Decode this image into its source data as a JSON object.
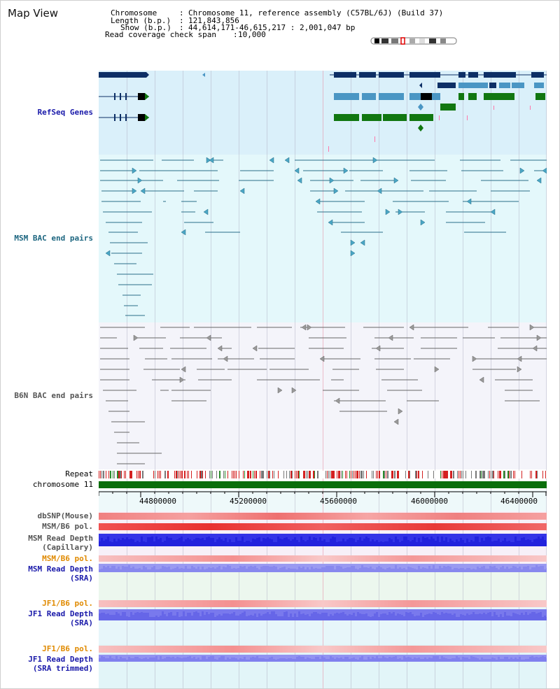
{
  "header": {
    "title": "Map View",
    "chromosome_label": "Chromosome",
    "chromosome_value": "Chromosome 11, reference assembly (C57BL/6J) (Build 37)",
    "length_label": "Length (b.p.)",
    "length_value": "121,843,856",
    "show_label": "Show (b.p.)",
    "show_value": "44,614,171-46,615,217 : 2,001,047 bp",
    "coverage_label": "Read coverage check span",
    "coverage_value": "10,000"
  },
  "tracks": {
    "refseq": "RefSeq Genes",
    "msm_bac": "MSM BAC end pairs",
    "b6n_bac": "B6N BAC end pairs",
    "repeat": "Repeat",
    "chromosome": "chromosome 11",
    "dbsnp": "dbSNP(Mouse)",
    "msm_b6_pol": "MSM/B6 pol.",
    "msm_depth_cap_1": "MSM Read Depth",
    "msm_depth_cap_2": "(Capillary)",
    "msm_b6_pol_sra": "MSM/B6 pol.",
    "msm_depth_sra_1": "MSM Read Depth",
    "msm_depth_sra_2": "(SRA)",
    "jf1_b6_pol": "JF1/B6 pol.",
    "jf1_depth_sra_1": "JF1 Read Depth",
    "jf1_depth_sra_2": "(SRA)",
    "jf1_b6_pol_trim": "JF1/B6 pol.",
    "jf1_depth_trim_1": "JF1 Read Depth",
    "jf1_depth_trim_2": "(SRA trimmed)"
  },
  "axis": {
    "ticks": [
      "44800000",
      "45200000",
      "45600000",
      "46000000",
      "46400000"
    ]
  },
  "colors": {
    "refseq_bg": "#daf0fa",
    "msm_bg": "#e4f8fb",
    "b6n_bg": "#f4f4fa",
    "gene_dark": "#0d2f66",
    "gene_mid": "#4a96c4",
    "gene_green": "#117711",
    "msm_pair": "#2a6e8a",
    "b6n_pair": "#555555",
    "chrom": "#0b6e0b",
    "depth_blue": "#2222dd",
    "depth_soft": "#7777ee",
    "label_blue": "#1a1aaa",
    "label_teal": "#1d6680",
    "label_orange": "#e08a00",
    "label_gray": "#555555"
  }
}
